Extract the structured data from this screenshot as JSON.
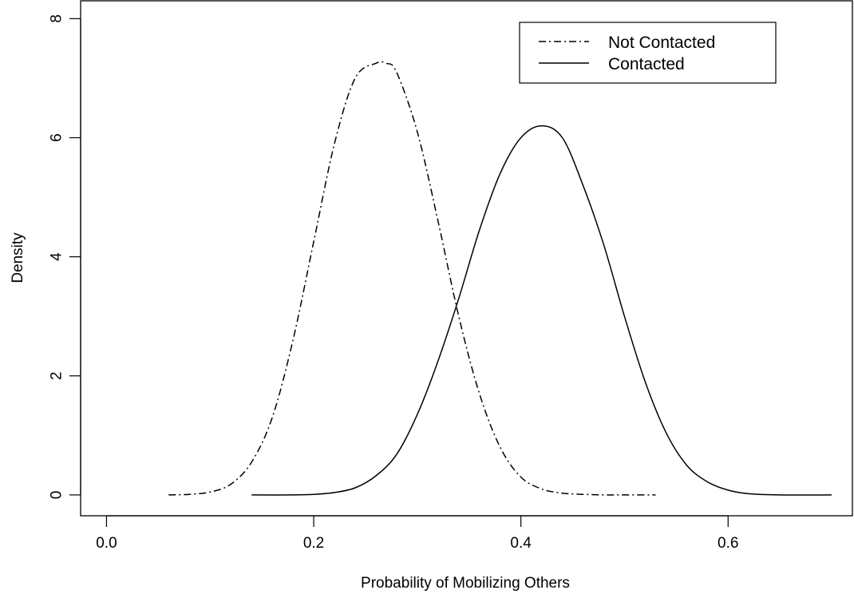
{
  "chart_data": {
    "type": "line",
    "title": "",
    "xlabel": "Probability of Mobilizing Others",
    "ylabel": "Density",
    "xlim": [
      -0.025,
      0.72
    ],
    "ylim": [
      -0.35,
      8.3
    ],
    "x_ticks": [
      0.0,
      0.2,
      0.4,
      0.6
    ],
    "x_tick_labels": [
      "0.0",
      "0.2",
      "0.4",
      "0.6"
    ],
    "y_ticks": [
      0,
      2,
      4,
      6,
      8
    ],
    "y_tick_labels": [
      "0",
      "2",
      "4",
      "6",
      "8"
    ],
    "grid": false,
    "legend_position": "top-right",
    "series": [
      {
        "name": "Not Contacted",
        "line_style": "dash-dot",
        "color": "#000000",
        "x": [
          0.06,
          0.08,
          0.1,
          0.12,
          0.14,
          0.16,
          0.18,
          0.2,
          0.22,
          0.24,
          0.26,
          0.27,
          0.28,
          0.3,
          0.32,
          0.34,
          0.36,
          0.38,
          0.4,
          0.42,
          0.44,
          0.46,
          0.48,
          0.5,
          0.53
        ],
        "y": [
          0.0,
          0.01,
          0.05,
          0.18,
          0.55,
          1.3,
          2.6,
          4.25,
          5.9,
          7.0,
          7.25,
          7.25,
          7.1,
          6.1,
          4.6,
          3.0,
          1.7,
          0.8,
          0.3,
          0.1,
          0.03,
          0.01,
          0.0,
          0.0,
          0.0
        ]
      },
      {
        "name": "Contacted",
        "line_style": "solid",
        "color": "#000000",
        "x": [
          0.14,
          0.18,
          0.2,
          0.22,
          0.24,
          0.26,
          0.28,
          0.3,
          0.32,
          0.34,
          0.36,
          0.38,
          0.4,
          0.42,
          0.44,
          0.46,
          0.48,
          0.5,
          0.52,
          0.54,
          0.56,
          0.58,
          0.6,
          0.62,
          0.65,
          0.7
        ],
        "y": [
          0.0,
          0.0,
          0.01,
          0.04,
          0.12,
          0.32,
          0.68,
          1.35,
          2.25,
          3.3,
          4.45,
          5.4,
          6.0,
          6.2,
          6.0,
          5.2,
          4.2,
          3.0,
          1.9,
          1.05,
          0.5,
          0.22,
          0.08,
          0.02,
          0.0,
          0.0
        ]
      }
    ]
  }
}
